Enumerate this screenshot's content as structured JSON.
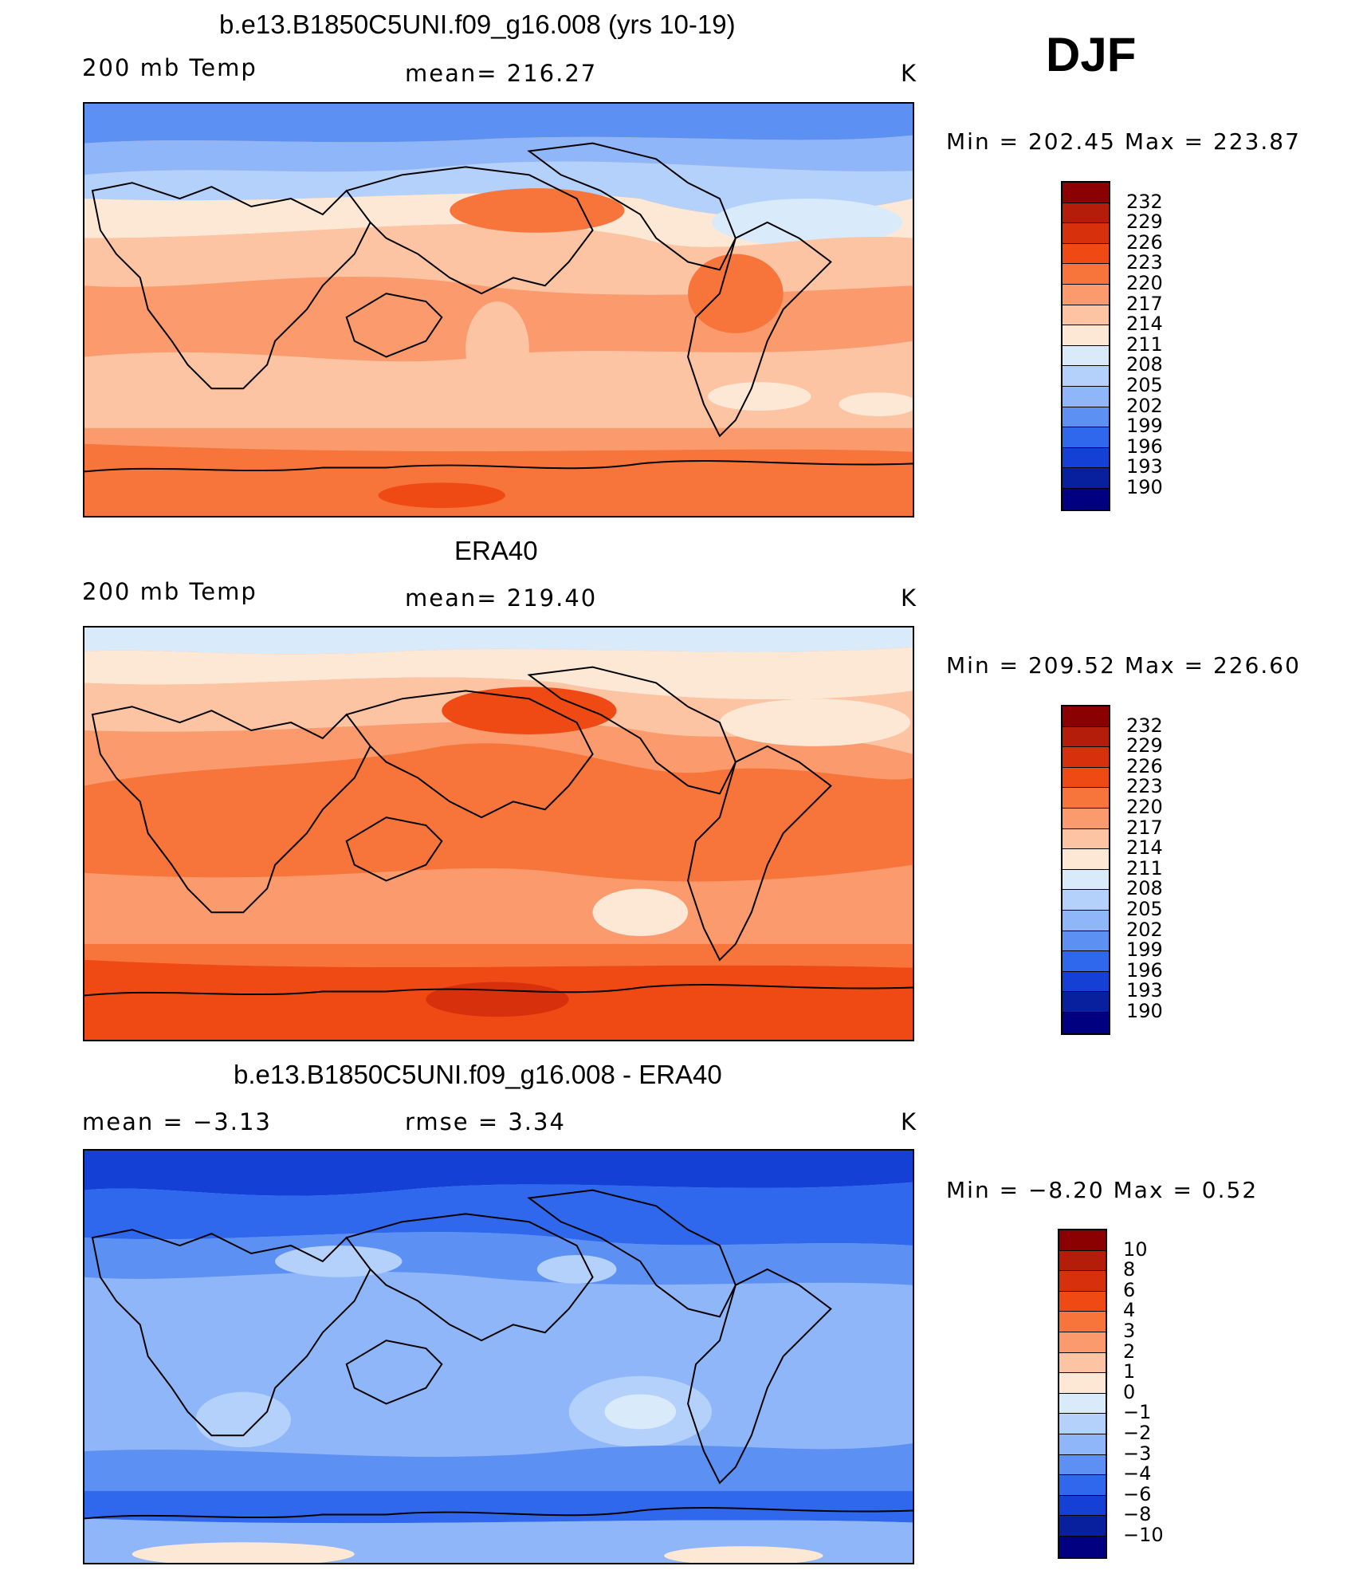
{
  "season": "DJF",
  "panels": [
    {
      "title": "b.e13.B1850C5UNI.f09_g16.008 (yrs 10-19)",
      "left_label": "200 mb Temp",
      "center_label": "mean= 216.27",
      "units": "K",
      "minmax": "Min = 202.45 Max = 223.87",
      "colorbar_labels": [
        "232",
        "229",
        "226",
        "223",
        "220",
        "217",
        "214",
        "211",
        "208",
        "205",
        "202",
        "199",
        "196",
        "193",
        "190"
      ]
    },
    {
      "title": "ERA40",
      "left_label": "200 mb Temp",
      "center_label": "mean= 219.40",
      "units": "K",
      "minmax": "Min = 209.52 Max = 226.60",
      "colorbar_labels": [
        "232",
        "229",
        "226",
        "223",
        "220",
        "217",
        "214",
        "211",
        "208",
        "205",
        "202",
        "199",
        "196",
        "193",
        "190"
      ]
    },
    {
      "title": "b.e13.B1850C5UNI.f09_g16.008 - ERA40",
      "left_label": "mean =   −3.13",
      "center_label": "rmse =    3.34",
      "units": "K",
      "minmax": "Min =  −8.20 Max =    0.52",
      "colorbar_labels": [
        "10",
        "8",
        "6",
        "4",
        "3",
        "2",
        "1",
        "0",
        "−1",
        "−2",
        "−3",
        "−4",
        "−6",
        "−8",
        "−10"
      ]
    }
  ],
  "colors": {
    "temp_scale": [
      "#8b0000",
      "#b31d0a",
      "#d6300c",
      "#f04a14",
      "#f7743a",
      "#fb9a6d",
      "#fdc4a3",
      "#fde8d6",
      "#d9eafb",
      "#b4d1fb",
      "#8fb6f9",
      "#5d90f3",
      "#2f68ec",
      "#1440d6",
      "#08209e",
      "#000080"
    ],
    "diff_scale": [
      "#8b0000",
      "#b31d0a",
      "#d6300c",
      "#f04a14",
      "#f7743a",
      "#fb9a6d",
      "#fdc4a3",
      "#fde8d6",
      "#d9eafb",
      "#b4d1fb",
      "#8fb6f9",
      "#5d90f3",
      "#2f68ec",
      "#1440d6",
      "#08209e",
      "#000080"
    ]
  }
}
